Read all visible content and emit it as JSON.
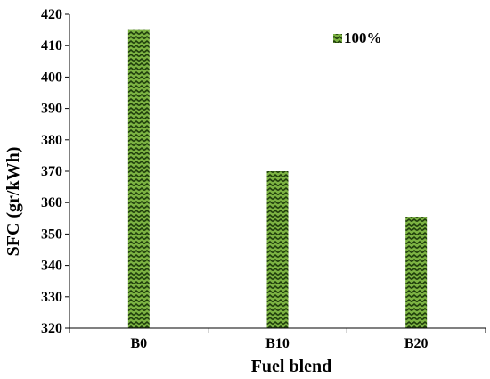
{
  "chart_data": {
    "type": "bar",
    "title": "",
    "xlabel": "Fuel blend",
    "ylabel": "SFC (gr/kWh)",
    "categories": [
      "B0",
      "B10",
      "B20"
    ],
    "series": [
      {
        "name": "100%",
        "values": [
          415,
          370,
          355.5
        ]
      }
    ],
    "ylim": [
      320,
      420
    ],
    "yticks": [
      320,
      330,
      340,
      350,
      360,
      370,
      380,
      390,
      400,
      410,
      420
    ],
    "grid": false,
    "legend": "top-right",
    "colors": {
      "bar_fill": "#7cb342",
      "bar_pattern": "#1f3d0c",
      "axis": "#000000"
    }
  }
}
